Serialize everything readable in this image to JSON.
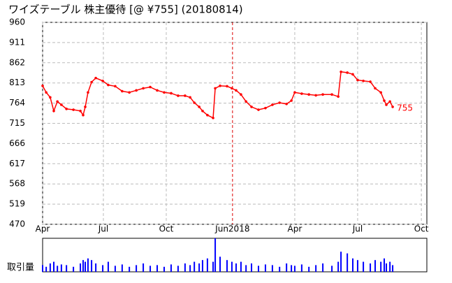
{
  "chart_data": [
    {
      "type": "line",
      "title": "ワイズテーブル 株主優待  [@ ¥755] (20180814)",
      "x": [
        0,
        0.17,
        0.36,
        0.53,
        0.7,
        0.89,
        1.13,
        1.46,
        1.79,
        1.92,
        2.02,
        2.15,
        2.32,
        2.52,
        2.85,
        3.11,
        3.44,
        3.77,
        4.11,
        4.44,
        4.77,
        5.1,
        5.43,
        5.76,
        6.09,
        6.42,
        6.75,
        6.99,
        7.19,
        7.42,
        7.58,
        7.81,
        8.08,
        8.18,
        8.41,
        8.74,
        8.97,
        9.17,
        9.4,
        9.64,
        9.9,
        10.23,
        10.56,
        10.89,
        11.23,
        11.56,
        11.79,
        11.95,
        12.28,
        12.62,
        12.95,
        13.28,
        13.71,
        14.01,
        14.14,
        14.44,
        14.7,
        14.93,
        15.2,
        15.53,
        15.76,
        16.03,
        16.19,
        16.29,
        16.46,
        16.59
      ],
      "series": [
        {
          "color": "#ff0000",
          "values": [
            806,
            790,
            778,
            745,
            768,
            760,
            750,
            748,
            745,
            735,
            755,
            790,
            815,
            825,
            818,
            808,
            805,
            793,
            790,
            795,
            800,
            803,
            795,
            790,
            788,
            782,
            782,
            778,
            765,
            755,
            745,
            735,
            728,
            800,
            806,
            805,
            800,
            795,
            785,
            768,
            755,
            748,
            752,
            760,
            765,
            762,
            770,
            790,
            787,
            785,
            783,
            785,
            785,
            780,
            840,
            838,
            834,
            820,
            818,
            816,
            800,
            790,
            770,
            760,
            768,
            755
          ]
        }
      ],
      "xlim": [
        0,
        18.21
      ],
      "xticks": [
        {
          "value": 0,
          "label": "Apr"
        },
        {
          "value": 2.88,
          "label": "Jul"
        },
        {
          "value": 5.86,
          "label": "Oct"
        },
        {
          "value": 9.0,
          "label": "Jun2018"
        },
        {
          "value": 11.95,
          "label": "Apr"
        },
        {
          "value": 14.93,
          "label": "Jul"
        },
        {
          "value": 17.95,
          "label": "Oct"
        }
      ],
      "ylim": [
        470,
        960
      ],
      "yticks": [
        470,
        519,
        568,
        617,
        666,
        715,
        764,
        813,
        862,
        911,
        960
      ],
      "grid": true
    },
    {
      "type": "bar",
      "title": "取引量",
      "x": [
        0,
        0.17,
        0.36,
        0.53,
        0.7,
        0.89,
        1.13,
        1.46,
        1.79,
        1.92,
        2.02,
        2.15,
        2.32,
        2.52,
        2.85,
        3.11,
        3.44,
        3.77,
        4.11,
        4.44,
        4.77,
        5.1,
        5.43,
        5.76,
        6.09,
        6.42,
        6.75,
        6.99,
        7.19,
        7.42,
        7.58,
        7.81,
        8.08,
        8.18,
        8.41,
        8.74,
        8.97,
        9.17,
        9.4,
        9.64,
        9.9,
        10.23,
        10.56,
        10.89,
        11.23,
        11.56,
        11.79,
        11.95,
        12.28,
        12.62,
        12.95,
        13.28,
        13.71,
        14.01,
        14.14,
        14.44,
        14.7,
        14.93,
        15.2,
        15.53,
        15.76,
        16.03,
        16.19,
        16.29,
        16.46,
        16.59
      ],
      "values": [
        20,
        15,
        25,
        30,
        18,
        22,
        20,
        15,
        25,
        35,
        30,
        40,
        35,
        25,
        20,
        30,
        18,
        22,
        15,
        20,
        25,
        18,
        20,
        15,
        22,
        18,
        25,
        20,
        30,
        25,
        35,
        40,
        30,
        100,
        45,
        35,
        30,
        25,
        30,
        20,
        25,
        18,
        22,
        20,
        15,
        25,
        20,
        18,
        22,
        15,
        20,
        25,
        18,
        30,
        60,
        55,
        40,
        35,
        30,
        25,
        35,
        30,
        40,
        25,
        30,
        20
      ],
      "color": "#0000ff",
      "xlim": [
        0,
        18.21
      ],
      "ylim": [
        0,
        100
      ]
    }
  ]
}
